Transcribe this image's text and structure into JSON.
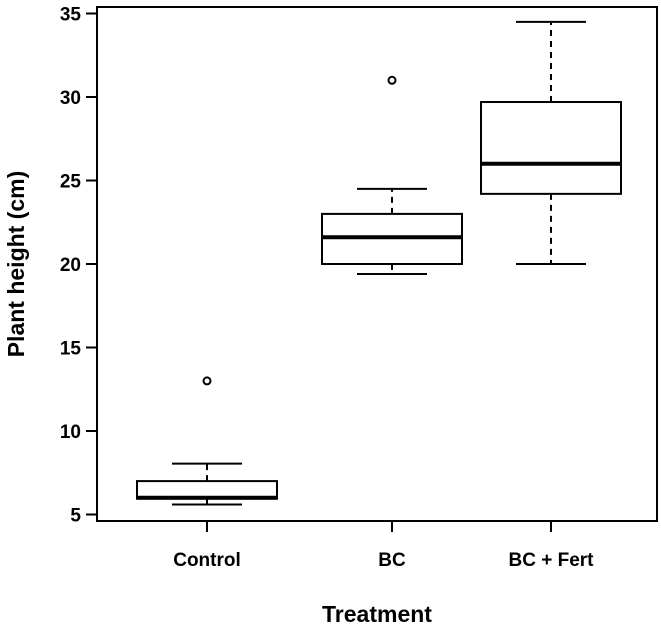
{
  "chart_data": {
    "type": "boxplot",
    "title": "",
    "xlabel": "Treatment",
    "ylabel": "Plant height (cm)",
    "ylim": [
      5,
      35
    ],
    "yticks": [
      5,
      10,
      15,
      20,
      25,
      30,
      35
    ],
    "grid": false,
    "categories": [
      "Control",
      "BC",
      "BC + Fert"
    ],
    "boxes": [
      {
        "name": "Control",
        "whisker_low": 5.6,
        "q1": 5.95,
        "median": 6.0,
        "q3": 7.0,
        "whisker_high": 8.05,
        "outliers": [
          13.0
        ]
      },
      {
        "name": "BC",
        "whisker_low": 19.4,
        "q1": 20.0,
        "median": 21.6,
        "q3": 23.0,
        "whisker_high": 24.5,
        "outliers": [
          31.0
        ]
      },
      {
        "name": "BC + Fert",
        "whisker_low": 20.0,
        "q1": 24.2,
        "median": 26.0,
        "q3": 29.7,
        "whisker_high": 34.5,
        "outliers": []
      }
    ]
  }
}
